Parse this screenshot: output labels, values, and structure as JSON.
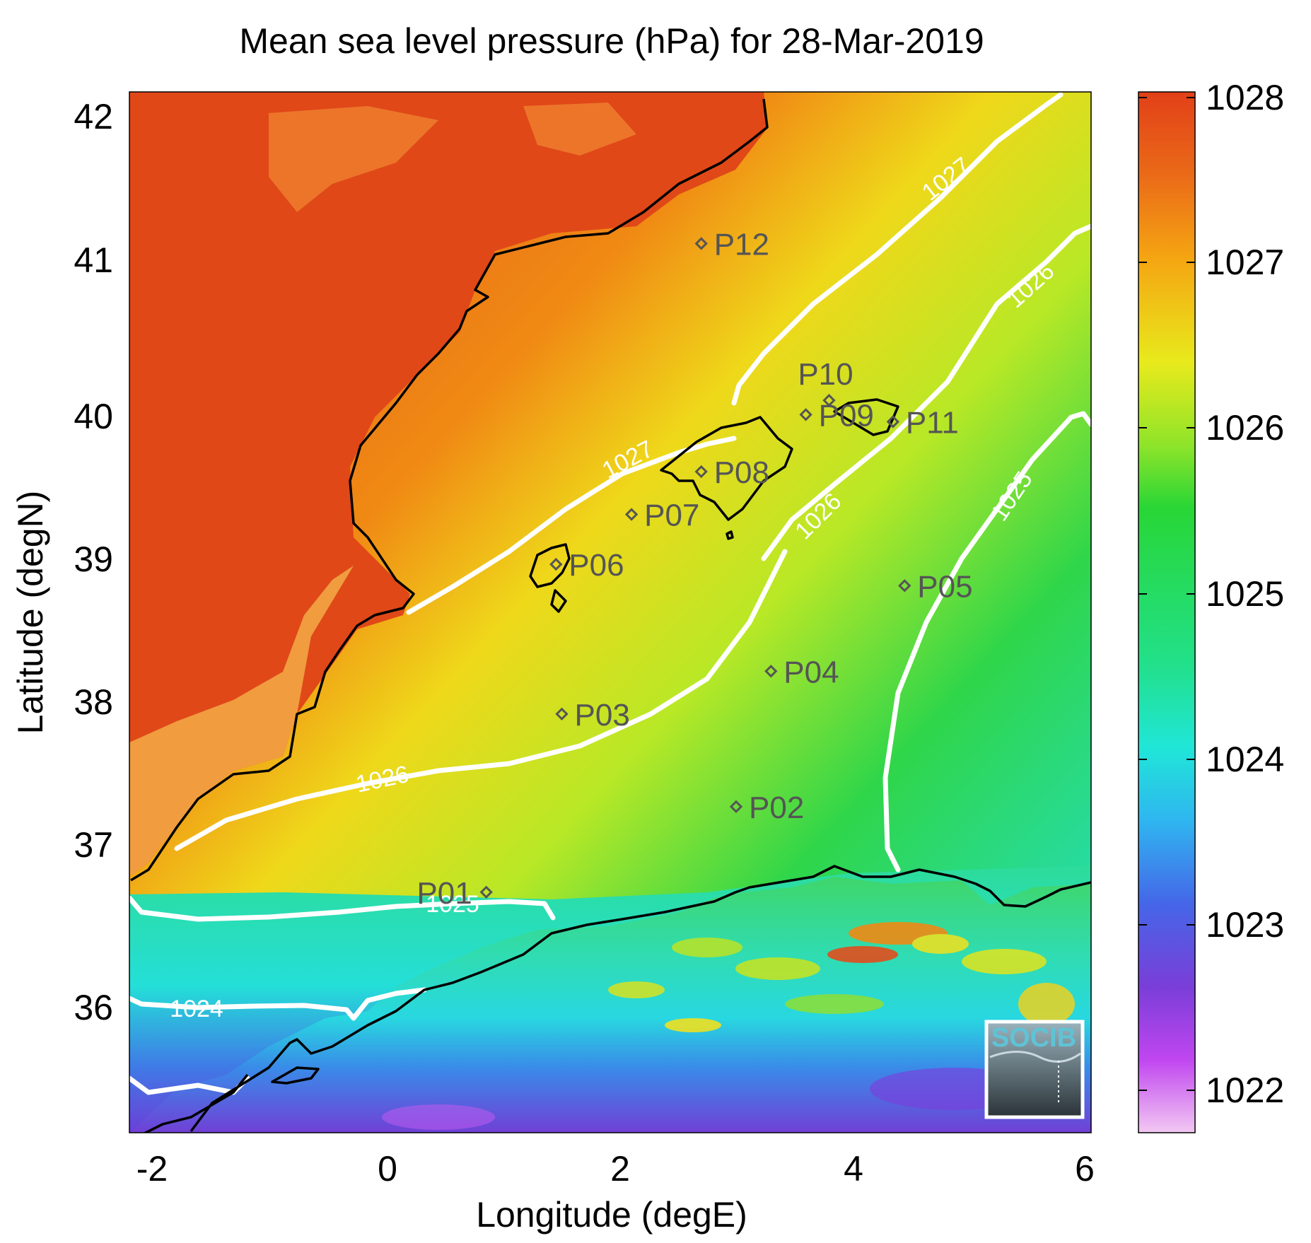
{
  "map": {
    "title": "Mean sea level pressure (hPa) for 28-Mar-2019",
    "xlabel": "Longitude (degE)",
    "ylabel": "Latitude (degN)",
    "x_ticks": [
      "-2",
      "0",
      "2",
      "4",
      "6"
    ],
    "y_ticks": [
      "42",
      "41",
      "40",
      "39",
      "38",
      "37",
      "36"
    ],
    "colorbar_ticks": [
      "1028",
      "1027",
      "1026",
      "1025",
      "1024",
      "1023",
      "1022"
    ],
    "contour_labels": {
      "c1027_a": "1027",
      "c1027_b": "1027",
      "c1026_a": "1026",
      "c1026_b": "1026",
      "c1026_c": "1026",
      "c1025_a": "1025",
      "c1025_b": "1025",
      "c1024": "1024"
    },
    "points": [
      {
        "label": "P01",
        "lon": 0.85,
        "lat": 36.55
      },
      {
        "label": "P02",
        "lon": 3.0,
        "lat": 37.15
      },
      {
        "label": "P03",
        "lon": 1.5,
        "lat": 37.8
      },
      {
        "label": "P04",
        "lon": 3.3,
        "lat": 38.1
      },
      {
        "label": "P05",
        "lon": 4.45,
        "lat": 38.7
      },
      {
        "label": "P06",
        "lon": 1.45,
        "lat": 38.85
      },
      {
        "label": "P07",
        "lon": 2.1,
        "lat": 39.2
      },
      {
        "label": "P08",
        "lon": 2.7,
        "lat": 39.5
      },
      {
        "label": "P09",
        "lon": 3.6,
        "lat": 39.9
      },
      {
        "label": "P10",
        "lon": 3.8,
        "lat": 40.0
      },
      {
        "label": "P11",
        "lon": 4.35,
        "lat": 39.85
      },
      {
        "label": "P12",
        "lon": 2.7,
        "lat": 41.1
      }
    ],
    "logo_text": "SOCIB"
  },
  "colors": {
    "c1022": "#e9b0ef",
    "c1023": "#6a3fd6",
    "c1024": "#22e0ee",
    "c1025": "#22d860",
    "c1026": "#c6ea1e",
    "c1027": "#f2a00f",
    "c1028": "#e24c1c"
  }
}
